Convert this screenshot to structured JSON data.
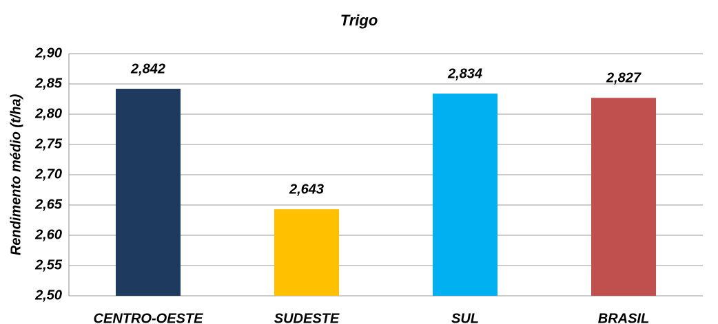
{
  "chart_data": {
    "type": "bar",
    "title": "Trigo",
    "y_label": "Rendimento médio (t/ha)",
    "categories": [
      "CENTRO-OESTE",
      "SUDESTE",
      "SUL",
      "BRASIL"
    ],
    "values": [
      2.842,
      2.643,
      2.834,
      2.827
    ],
    "value_labels": [
      "2,842",
      "2,643",
      "2,834",
      "2,827"
    ],
    "colors": [
      "#1f3a5f",
      "#ffc000",
      "#00b0f0",
      "#c0504d"
    ],
    "ylim": [
      2.5,
      2.9
    ],
    "yticks": [
      {
        "value": 2.5,
        "label": "2,50"
      },
      {
        "value": 2.55,
        "label": "2,55"
      },
      {
        "value": 2.6,
        "label": "2,60"
      },
      {
        "value": 2.65,
        "label": "2,65"
      },
      {
        "value": 2.7,
        "label": "2,70"
      },
      {
        "value": 2.75,
        "label": "2,75"
      },
      {
        "value": 2.8,
        "label": "2,80"
      },
      {
        "value": 2.85,
        "label": "2,85"
      },
      {
        "value": 2.9,
        "label": "2,90"
      }
    ],
    "grid": true
  }
}
